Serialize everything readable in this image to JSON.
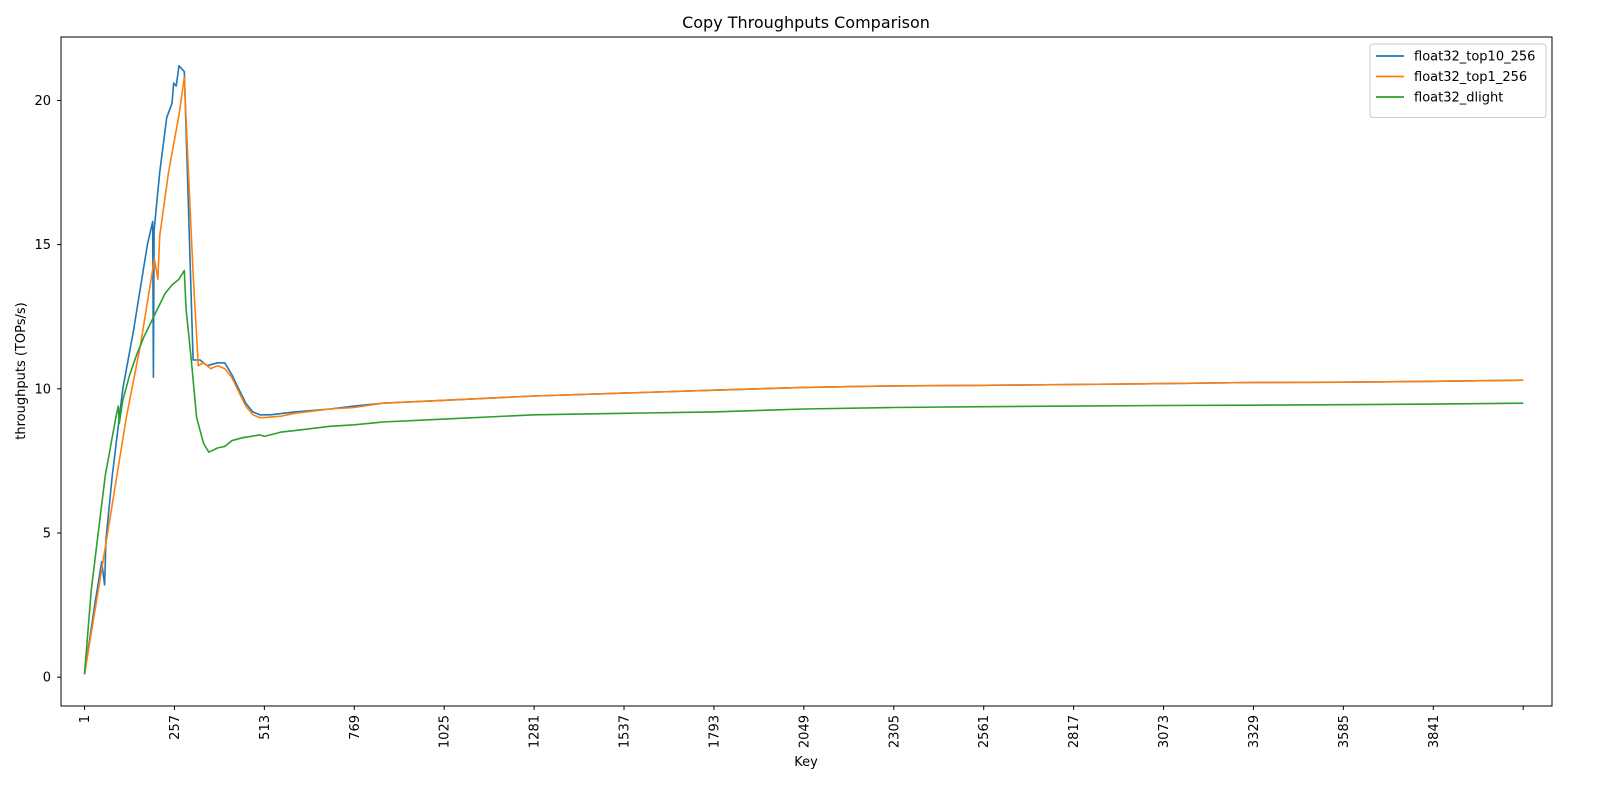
{
  "chart_data": {
    "type": "line",
    "title": "Copy Throughputs Comparison",
    "xlabel": "Key",
    "ylabel": "throughputs (TOPs/s)",
    "xlim": [
      -66,
      4179
    ],
    "ylim": [
      -1.0,
      22.2
    ],
    "grid": false,
    "legend_position": "top-right",
    "x_ticks": [
      1,
      257,
      513,
      769,
      1025,
      1281,
      1537,
      1793,
      2049,
      2305,
      2561,
      2817,
      3073,
      3329,
      3585,
      3841,
      4097
    ],
    "x_tick_labels": [
      "1",
      "257",
      "513",
      "769",
      "1025",
      "1281",
      "1537",
      "1793",
      "2049",
      "2305",
      "2561",
      "2817",
      "3073",
      "3329",
      "3585",
      "3841",
      ""
    ],
    "y_ticks": [
      0,
      5,
      10,
      15,
      20
    ],
    "y_tick_labels": [
      "0",
      "5",
      "10",
      "15",
      "20"
    ],
    "series": [
      {
        "name": "float32_top10_256",
        "color": "#1f77b4",
        "points": [
          [
            1,
            0.1
          ],
          [
            30,
            2.5
          ],
          [
            50,
            4.0
          ],
          [
            58,
            3.2
          ],
          [
            62,
            4.8
          ],
          [
            80,
            7.0
          ],
          [
            110,
            10.0
          ],
          [
            140,
            12.0
          ],
          [
            160,
            13.5
          ],
          [
            180,
            15.0
          ],
          [
            195,
            15.8
          ],
          [
            197,
            10.4
          ],
          [
            199,
            15.5
          ],
          [
            215,
            17.5
          ],
          [
            235,
            19.4
          ],
          [
            250,
            19.9
          ],
          [
            255,
            20.6
          ],
          [
            262,
            20.5
          ],
          [
            270,
            21.2
          ],
          [
            285,
            21.0
          ],
          [
            300,
            15.0
          ],
          [
            310,
            11.0
          ],
          [
            330,
            11.0
          ],
          [
            350,
            10.8
          ],
          [
            380,
            10.9
          ],
          [
            400,
            10.9
          ],
          [
            420,
            10.5
          ],
          [
            440,
            10.0
          ],
          [
            460,
            9.5
          ],
          [
            480,
            9.2
          ],
          [
            500,
            9.1
          ],
          [
            530,
            9.1
          ],
          [
            600,
            9.2
          ],
          [
            700,
            9.3
          ],
          [
            769,
            9.4
          ],
          [
            850,
            9.5
          ],
          [
            1025,
            9.6
          ],
          [
            1281,
            9.75
          ],
          [
            1537,
            9.85
          ],
          [
            1793,
            9.95
          ],
          [
            2049,
            10.05
          ],
          [
            2305,
            10.1
          ],
          [
            2561,
            10.12
          ],
          [
            2817,
            10.15
          ],
          [
            3073,
            10.18
          ],
          [
            3329,
            10.22
          ],
          [
            3585,
            10.23
          ],
          [
            3841,
            10.26
          ],
          [
            4097,
            10.3
          ]
        ]
      },
      {
        "name": "float32_top1_256",
        "color": "#ff7f0e",
        "points": [
          [
            1,
            0.1
          ],
          [
            40,
            3.0
          ],
          [
            80,
            6.0
          ],
          [
            120,
            9.0
          ],
          [
            160,
            11.5
          ],
          [
            200,
            14.5
          ],
          [
            210,
            13.8
          ],
          [
            215,
            15.3
          ],
          [
            240,
            17.5
          ],
          [
            270,
            19.5
          ],
          [
            285,
            20.8
          ],
          [
            295,
            18.0
          ],
          [
            310,
            14.0
          ],
          [
            325,
            10.8
          ],
          [
            340,
            10.9
          ],
          [
            360,
            10.7
          ],
          [
            380,
            10.8
          ],
          [
            400,
            10.7
          ],
          [
            420,
            10.4
          ],
          [
            440,
            9.9
          ],
          [
            460,
            9.4
          ],
          [
            480,
            9.1
          ],
          [
            500,
            9.0
          ],
          [
            513,
            9.0
          ],
          [
            560,
            9.05
          ],
          [
            600,
            9.15
          ],
          [
            700,
            9.3
          ],
          [
            769,
            9.35
          ],
          [
            850,
            9.5
          ],
          [
            1025,
            9.6
          ],
          [
            1281,
            9.75
          ],
          [
            1537,
            9.85
          ],
          [
            1793,
            9.95
          ],
          [
            2049,
            10.05
          ],
          [
            2305,
            10.1
          ],
          [
            2561,
            10.12
          ],
          [
            2817,
            10.15
          ],
          [
            3073,
            10.18
          ],
          [
            3329,
            10.22
          ],
          [
            3585,
            10.23
          ],
          [
            3841,
            10.26
          ],
          [
            4097,
            10.3
          ]
        ]
      },
      {
        "name": "float32_dlight",
        "color": "#2ca02c",
        "points": [
          [
            1,
            0.1
          ],
          [
            20,
            3.0
          ],
          [
            40,
            5.0
          ],
          [
            60,
            7.0
          ],
          [
            90,
            9.0
          ],
          [
            97,
            9.4
          ],
          [
            100,
            8.8
          ],
          [
            110,
            9.6
          ],
          [
            130,
            10.5
          ],
          [
            150,
            11.2
          ],
          [
            170,
            11.8
          ],
          [
            190,
            12.3
          ],
          [
            210,
            12.8
          ],
          [
            230,
            13.3
          ],
          [
            250,
            13.6
          ],
          [
            270,
            13.8
          ],
          [
            285,
            14.1
          ],
          [
            290,
            12.8
          ],
          [
            305,
            11.0
          ],
          [
            320,
            9.0
          ],
          [
            340,
            8.1
          ],
          [
            355,
            7.8
          ],
          [
            380,
            7.95
          ],
          [
            400,
            8.0
          ],
          [
            420,
            8.2
          ],
          [
            450,
            8.3
          ],
          [
            500,
            8.4
          ],
          [
            513,
            8.35
          ],
          [
            560,
            8.5
          ],
          [
            600,
            8.55
          ],
          [
            700,
            8.7
          ],
          [
            769,
            8.75
          ],
          [
            850,
            8.85
          ],
          [
            1025,
            8.95
          ],
          [
            1281,
            9.1
          ],
          [
            1537,
            9.15
          ],
          [
            1793,
            9.2
          ],
          [
            2049,
            9.3
          ],
          [
            2305,
            9.35
          ],
          [
            2561,
            9.38
          ],
          [
            2817,
            9.4
          ],
          [
            3073,
            9.42
          ],
          [
            3329,
            9.43
          ],
          [
            3585,
            9.45
          ],
          [
            3841,
            9.47
          ],
          [
            4097,
            9.5
          ]
        ]
      }
    ]
  }
}
